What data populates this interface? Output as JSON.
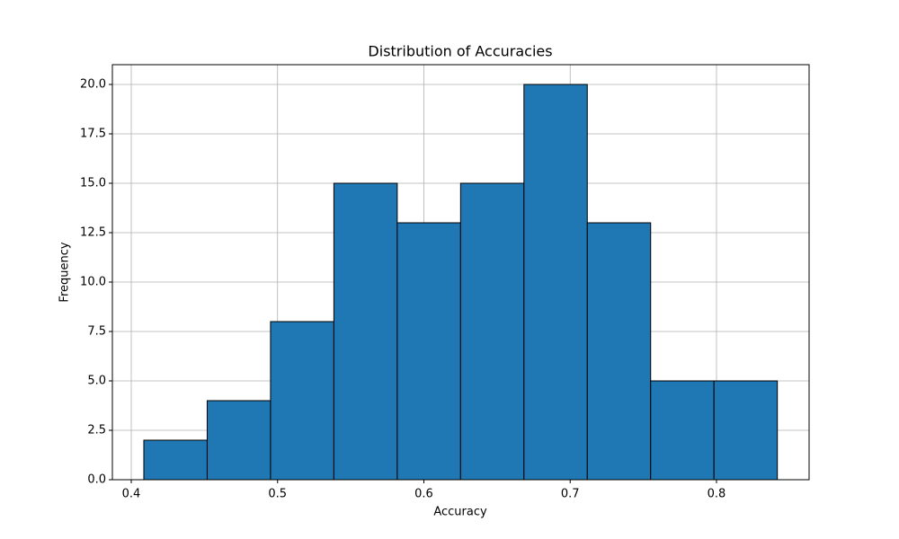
{
  "chart_data": {
    "type": "histogram",
    "title": "Distribution of Accuracies",
    "x_label": "Accuracy",
    "y_label": "Frequency",
    "bins": [
      0.4086,
      0.4519,
      0.4952,
      0.5385,
      0.5818,
      0.6251,
      0.6684,
      0.7117,
      0.755,
      0.7983,
      0.8416
    ],
    "values": [
      2,
      4,
      8,
      15,
      13,
      15,
      20,
      13,
      5,
      5
    ],
    "color": "#1f77b4",
    "edge_color": "#000000",
    "xlim": [
      0.3871,
      0.8633
    ],
    "ylim": [
      0,
      21
    ],
    "xticks": [
      0.4,
      0.5,
      0.6,
      0.7,
      0.8
    ],
    "yticks": [
      {
        "value": 0,
        "label": "0.0"
      },
      2.5,
      {
        "value": 5,
        "label": "5.0"
      },
      7.5,
      {
        "value": 10,
        "label": "10.0"
      },
      12.5,
      {
        "value": 15,
        "label": "15.0"
      },
      17.5,
      {
        "value": 20,
        "label": "20.0"
      }
    ],
    "grid": true
  }
}
